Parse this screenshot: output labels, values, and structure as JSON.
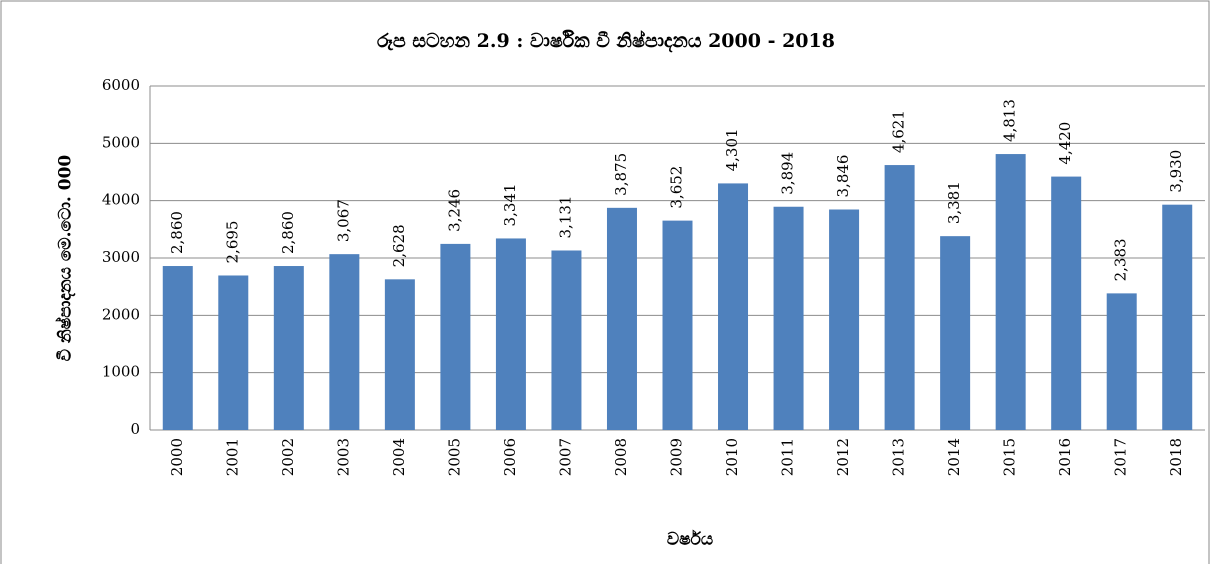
{
  "chart_data": {
    "type": "bar",
    "title": "රූප සටහන 2.9 : වාර්ෂික වී නිෂ්පාදනය 2000 - 2018",
    "x_label": "වර්ෂය",
    "y_label": "වී නිෂ්පාදනය මෙ.ටො. 000",
    "categories": [
      "2000",
      "2001",
      "2002",
      "2003",
      "2004",
      "2005",
      "2006",
      "2007",
      "2008",
      "2009",
      "2010",
      "2011",
      "2012",
      "2013",
      "2014",
      "2015",
      "2016",
      "2017",
      "2018"
    ],
    "values": [
      2860,
      2695,
      2860,
      3067,
      2628,
      3246,
      3341,
      3131,
      3875,
      3652,
      4301,
      3894,
      3846,
      4621,
      3381,
      4813,
      4420,
      2383,
      3930
    ],
    "value_labels": [
      "2,860",
      "2,695",
      "2,860",
      "3,067",
      "2,628",
      "3,246",
      "3,341",
      "3,131",
      "3,875",
      "3,652",
      "4,301",
      "3,894",
      "3,846",
      "4,621",
      "3,381",
      "4,813",
      "4,420",
      "2,383",
      "3,930"
    ],
    "color": "#4f81bd",
    "ylim": [
      0,
      6000
    ],
    "yticks": [
      0,
      1000,
      2000,
      3000,
      4000,
      5000,
      6000
    ],
    "grid": true
  }
}
